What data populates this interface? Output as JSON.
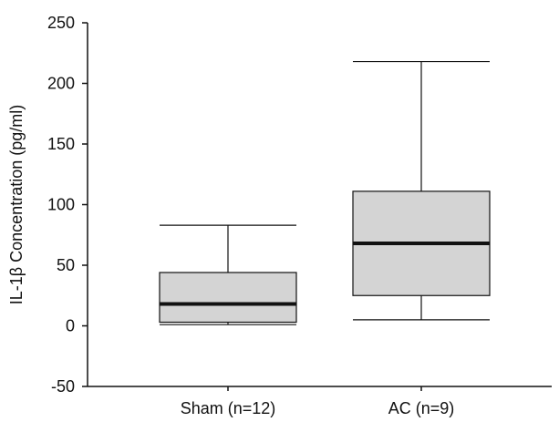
{
  "chart_data": {
    "type": "box",
    "ylabel": "IL-1β Concentration (pg/ml)",
    "xlabel": "",
    "ylim": [
      -50,
      250
    ],
    "yticks": [
      -50,
      0,
      50,
      100,
      150,
      200,
      250
    ],
    "grid": false,
    "colors": {
      "box_fill": "#d4d4d4",
      "stroke": "#111111"
    },
    "categories": [
      "Sham (n=12)",
      "AC (n=9)"
    ],
    "boxes": [
      {
        "label": "Sham (n=12)",
        "min": 1,
        "q1": 3,
        "median": 18,
        "q3": 44,
        "max": 83
      },
      {
        "label": "AC (n=9)",
        "min": 5,
        "q1": 25,
        "median": 68,
        "q3": 111,
        "max": 218
      }
    ]
  }
}
